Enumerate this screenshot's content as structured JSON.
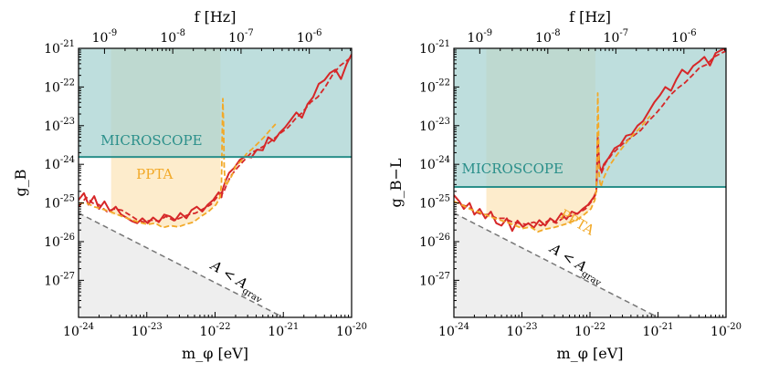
{
  "chart_data": [
    {
      "type": "line",
      "title": "",
      "xlabel": "m_φ [eV]",
      "ylabel": "g_B",
      "top_axis_label": "f [Hz]",
      "xscale": "log",
      "yscale": "log",
      "xlim": [
        1e-24,
        1e-20
      ],
      "ylim": [
        1.1e-28,
        1e-21
      ],
      "x_ticks": [
        {
          "exp": -24
        },
        {
          "exp": -23
        },
        {
          "exp": -22
        },
        {
          "exp": -21
        },
        {
          "exp": -20
        }
      ],
      "y_ticks": [
        {
          "exp": -21
        },
        {
          "exp": -22
        },
        {
          "exp": -23
        },
        {
          "exp": -24
        },
        {
          "exp": -25
        },
        {
          "exp": -26
        },
        {
          "exp": -27
        }
      ],
      "top_ticks": [
        {
          "exp": -9,
          "mass": 2.4e-24
        },
        {
          "exp": -8,
          "mass": 2.4e-23
        },
        {
          "exp": -7,
          "mass": 2.4e-22
        },
        {
          "exp": -6,
          "mass": 2.4e-21
        }
      ],
      "regions": [
        {
          "name": "MICROSCOPE",
          "label": "MICROSCOPE",
          "color": "#2a8f8a",
          "fill": "#a8d3d2",
          "level": 1.55e-24,
          "label_pos": [
            2.1e-24,
            3.2e-24
          ]
        },
        {
          "name": "PPTA",
          "label": "PPTA",
          "color": "#f2a928",
          "fill": "#fdeccc",
          "x_range": [
            3e-24,
            1.2e-22
          ],
          "label_pos": [
            1.3e-23,
            4.2e-25
          ]
        },
        {
          "name": "Agrav",
          "label_main": "A < A",
          "label_sub": "grav",
          "fill": "#eeeeee",
          "color": "#777777",
          "line": [
            [
              1e-24,
              5.5e-26
            ],
            [
              1e-21,
              1.1e-28
            ]
          ],
          "label_pos": [
            2e-22,
            8e-28
          ],
          "label_angle": 32
        }
      ],
      "series": [
        {
          "name": "solid",
          "color": "#d62728",
          "dash": "",
          "x": [
            1e-24,
            1.2e-24,
            1.4e-24,
            1.7e-24,
            2e-24,
            2.4e-24,
            2.9e-24,
            3.5e-24,
            4.2e-24,
            5e-24,
            6e-24,
            7.2e-24,
            8.6e-24,
            1.03e-23,
            1.24e-23,
            1.5e-23,
            1.8e-23,
            2.2e-23,
            2.6e-23,
            3.1e-23,
            3.8e-23,
            4.5e-23,
            5.4e-23,
            6.5e-23,
            7.8e-23,
            9.4e-23,
            1.13e-22,
            1.24e-22,
            1.3e-22,
            1.38e-22,
            1.48e-22,
            1.6e-22,
            1.9e-22,
            2.3e-22,
            2.8e-22,
            3.4e-22,
            4.1e-22,
            5e-22,
            6e-22,
            7.3e-22,
            8.8e-22,
            1.06e-21,
            1.28e-21,
            1.55e-21,
            1.87e-21,
            2.26e-21,
            2.73e-21,
            3.3e-21,
            4e-21,
            4.8e-21,
            5.8e-21,
            7e-21,
            8.5e-21,
            1e-20
          ],
          "y": [
            1.2e-25,
            1.8e-25,
            9e-26,
            1.5e-25,
            7e-26,
            1.1e-25,
            6e-26,
            8e-26,
            5e-26,
            4.2e-26,
            3.4e-26,
            3e-26,
            4e-26,
            3e-26,
            4.2e-26,
            3.2e-26,
            5e-26,
            4.5e-26,
            3.6e-26,
            5.5e-26,
            4e-26,
            6.5e-26,
            8e-26,
            6e-26,
            9e-26,
            1.2e-25,
            1.9e-25,
            1.4e-25,
            2.3e-25,
            3.2e-25,
            4.3e-25,
            6e-25,
            8e-25,
            1.3e-24,
            1.6e-24,
            1.5e-24,
            2.4e-24,
            2.3e-24,
            5e-24,
            4e-24,
            6.5e-24,
            9e-24,
            1.4e-23,
            2.2e-23,
            1.6e-23,
            3.6e-23,
            5.5e-23,
            1.2e-22,
            1.5e-22,
            2.3e-22,
            2.8e-22,
            1.6e-22,
            4e-22,
            7e-22
          ]
        },
        {
          "name": "dashed",
          "color": "#d62728",
          "dash": "6 3",
          "x": [
            1e-24,
            1.3e-24,
            1.6e-24,
            2e-24,
            2.6e-24,
            3.3e-24,
            4.3e-24,
            5.5e-24,
            7e-24,
            9e-24,
            1.15e-23,
            1.5e-23,
            1.9e-23,
            2.5e-23,
            3.2e-23,
            4.1e-23,
            5.2e-23,
            6.7e-23,
            8.6e-23,
            1.1e-22,
            1.24e-22,
            1.3e-22,
            1.38e-22,
            1.48e-22,
            1.7e-22,
            2.1e-22,
            2.7e-22,
            3.4e-22,
            4.4e-22,
            5.6e-22,
            7.2e-22,
            9.2e-22,
            1.18e-21,
            1.5e-21,
            1.9e-21,
            2.5e-21,
            3.2e-21,
            4.1e-21,
            5.2e-21,
            6.7e-21,
            8.5e-21,
            1e-20
          ],
          "y": [
            8e-26,
            1.4e-25,
            1e-25,
            9e-26,
            6e-26,
            7e-26,
            6.5e-26,
            5e-26,
            3.8e-26,
            3.2e-26,
            3.6e-26,
            3.4e-26,
            4.5e-26,
            3.5e-26,
            4.2e-26,
            5e-26,
            5.5e-26,
            7e-26,
            9e-26,
            1.5e-25,
            1.9e-25,
            1.8e-25,
            2.2e-25,
            3e-25,
            5e-25,
            8e-25,
            1.3e-24,
            2e-24,
            2.5e-24,
            3.2e-24,
            4.5e-24,
            6.5e-24,
            9e-24,
            1.5e-23,
            2.2e-23,
            4e-23,
            5.5e-23,
            1e-22,
            2e-22,
            3.5e-22,
            4.8e-22,
            6e-22
          ]
        },
        {
          "name": "ppta",
          "color": "#f2a928",
          "dash": "6 3",
          "x": [
            1e-24,
            1.3e-24,
            1.7e-24,
            2.2e-24,
            2.9e-24,
            3.7e-24,
            4.8e-24,
            6.2e-24,
            8e-24,
            1.03e-23,
            1.33e-23,
            1.72e-23,
            2.2e-23,
            2.9e-23,
            3.7e-23,
            4.8e-23,
            6.2e-23,
            8e-23,
            1.03e-22,
            1.18e-22,
            1.24e-22,
            1.27e-22,
            1.3e-22,
            1.33e-22,
            1.36e-22,
            1.4e-22,
            1.45e-22,
            1.55e-22,
            1.75e-22,
            2e-22,
            2.4e-22,
            2.9e-22,
            3.5e-22,
            4.3e-22,
            5.2e-22,
            6.3e-22,
            7.7e-22
          ],
          "y": [
            1e-25,
            1e-25,
            8e-26,
            7e-26,
            6e-26,
            5e-26,
            4.2e-26,
            3.6e-26,
            3.1e-26,
            2.8e-26,
            3e-26,
            2.3e-26,
            2.6e-26,
            2.4e-26,
            2.8e-26,
            3.2e-26,
            4.5e-26,
            6e-26,
            9e-26,
            1.4e-25,
            3e-25,
            6e-24,
            5e-23,
            1e-23,
            8e-25,
            4e-25,
            2.8e-25,
            3.5e-25,
            5e-25,
            9e-25,
            1.2e-24,
            1.9e-24,
            2.5e-24,
            3.6e-24,
            5e-24,
            7.5e-24,
            1.1e-23
          ]
        }
      ]
    },
    {
      "type": "line",
      "title": "",
      "xlabel": "m_φ [eV]",
      "ylabel": "g_B−L",
      "top_axis_label": "f [Hz]",
      "xscale": "log",
      "yscale": "log",
      "xlim": [
        1e-24,
        1e-20
      ],
      "ylim": [
        1.1e-28,
        1e-21
      ],
      "x_ticks": [
        {
          "exp": -24
        },
        {
          "exp": -23
        },
        {
          "exp": -22
        },
        {
          "exp": -21
        },
        {
          "exp": -20
        }
      ],
      "y_ticks": [
        {
          "exp": -21
        },
        {
          "exp": -22
        },
        {
          "exp": -23
        },
        {
          "exp": -24
        },
        {
          "exp": -25
        },
        {
          "exp": -26
        },
        {
          "exp": -27
        }
      ],
      "top_ticks": [
        {
          "exp": -9,
          "mass": 2.4e-24
        },
        {
          "exp": -8,
          "mass": 2.4e-23
        },
        {
          "exp": -7,
          "mass": 2.4e-22
        },
        {
          "exp": -6,
          "mass": 2.4e-21
        }
      ],
      "regions": [
        {
          "name": "MICROSCOPE",
          "label": "MICROSCOPE",
          "color": "#2a8f8a",
          "fill": "#a8d3d2",
          "level": 2.6e-25,
          "label_pos": [
            1.3e-24,
            5.8e-25
          ]
        },
        {
          "name": "PPTA",
          "label": "PPTA",
          "color": "#f2a928",
          "fill": "#fdeccc",
          "x_range": [
            3e-24,
            1.2e-22
          ],
          "label_pos": [
            6e-23,
            2.5e-26
          ],
          "label_angle": 30
        },
        {
          "name": "Agrav",
          "label_main": "A < A",
          "label_sub": "grav",
          "fill": "#eeeeee",
          "color": "#777777",
          "line": [
            [
              1e-24,
              5.5e-26
            ],
            [
              1e-21,
              1.1e-28
            ]
          ],
          "label_pos": [
            6e-23,
            2.2e-27
          ],
          "label_angle": 32
        }
      ],
      "series": [
        {
          "name": "solid",
          "color": "#d62728",
          "dash": "",
          "x": [
            1e-24,
            1.2e-24,
            1.4e-24,
            1.7e-24,
            2e-24,
            2.4e-24,
            2.9e-24,
            3.5e-24,
            4.2e-24,
            5e-24,
            6e-24,
            7.2e-24,
            8.6e-24,
            1.03e-23,
            1.24e-23,
            1.5e-23,
            1.8e-23,
            2.2e-23,
            2.6e-23,
            3.1e-23,
            3.8e-23,
            4.5e-23,
            5.4e-23,
            6.5e-23,
            7.8e-23,
            9.4e-23,
            1.13e-22,
            1.24e-22,
            1.3e-22,
            1.38e-22,
            1.48e-22,
            1.6e-22,
            1.9e-22,
            2.3e-22,
            2.8e-22,
            3.4e-22,
            4.1e-22,
            5e-22,
            6e-22,
            7.3e-22,
            8.8e-22,
            1.06e-21,
            1.28e-21,
            1.55e-21,
            1.87e-21,
            2.26e-21,
            2.73e-21,
            3.3e-21,
            4e-21,
            4.8e-21,
            5.8e-21,
            7e-21,
            8.5e-21,
            1e-20
          ],
          "y": [
            1.6e-25,
            1.1e-25,
            7e-26,
            1e-25,
            5e-26,
            7e-26,
            4e-26,
            6e-26,
            3e-26,
            2.6e-26,
            4e-26,
            1.9e-26,
            3.5e-26,
            2.4e-26,
            3e-26,
            2.3e-26,
            3.6e-26,
            2.6e-26,
            4e-26,
            3.2e-26,
            5.4e-26,
            3.8e-26,
            6e-26,
            5.2e-26,
            7e-26,
            9e-26,
            1.4e-25,
            2e-25,
            5e-24,
            9e-25,
            6.5e-25,
            1e-24,
            1.5e-24,
            2.6e-24,
            3.2e-24,
            5.5e-24,
            6e-24,
            1e-23,
            1.3e-23,
            2.3e-23,
            4e-23,
            6e-23,
            1e-22,
            8e-23,
            1.6e-22,
            2.8e-22,
            2.2e-22,
            3.5e-22,
            4.5e-22,
            6e-22,
            3.6e-22,
            7.5e-22,
            9e-22,
            1e-21
          ]
        },
        {
          "name": "dashed",
          "color": "#d62728",
          "dash": "6 3",
          "x": [
            1e-24,
            1.3e-24,
            1.6e-24,
            2e-24,
            2.6e-24,
            3.3e-24,
            4.3e-24,
            5.5e-24,
            7e-24,
            9e-24,
            1.15e-23,
            1.5e-23,
            1.9e-23,
            2.5e-23,
            3.2e-23,
            4.1e-23,
            5.2e-23,
            6.7e-23,
            8.6e-23,
            1.1e-22,
            1.24e-22,
            1.3e-22,
            1.38e-22,
            1.48e-22,
            1.7e-22,
            2.1e-22,
            2.7e-22,
            3.4e-22,
            4.4e-22,
            5.6e-22,
            7.2e-22,
            9.2e-22,
            1.18e-21,
            1.5e-21,
            1.9e-21,
            2.5e-21,
            3.2e-21,
            4.1e-21,
            5.2e-21,
            6.7e-21,
            8.5e-21,
            1e-20
          ],
          "y": [
            1.1e-25,
            9e-26,
            8e-26,
            6e-26,
            5e-26,
            5e-26,
            4e-26,
            4e-26,
            3.3e-26,
            3e-26,
            2.8e-26,
            3.2e-26,
            2.6e-26,
            3.6e-26,
            3e-26,
            4.2e-26,
            4.6e-26,
            5.5e-26,
            7e-26,
            1.2e-25,
            1.8e-25,
            2.4e-24,
            9e-25,
            6e-25,
            1.1e-24,
            1.8e-24,
            2.8e-24,
            4e-24,
            5.5e-24,
            7.6e-24,
            1.3e-23,
            2e-23,
            3.4e-23,
            6e-23,
            9e-23,
            1.3e-22,
            2e-22,
            3.2e-22,
            3.8e-22,
            6e-22,
            7.5e-22,
            8.5e-22
          ]
        },
        {
          "name": "ppta",
          "color": "#f2a928",
          "dash": "6 3",
          "x": [
            1e-24,
            1.3e-24,
            1.7e-24,
            2.2e-24,
            2.9e-24,
            3.7e-24,
            4.8e-24,
            6.2e-24,
            8e-24,
            1.03e-23,
            1.33e-23,
            1.72e-23,
            2.2e-23,
            2.9e-23,
            3.7e-23,
            4.8e-23,
            6.2e-23,
            8e-23,
            1.03e-22,
            1.18e-22,
            1.24e-22,
            1.27e-22,
            1.3e-22,
            1.33e-22,
            1.36e-22,
            1.4e-22,
            1.45e-22,
            1.55e-22,
            1.75e-22,
            2e-22,
            2.4e-22,
            2.9e-22,
            3.5e-22,
            4.3e-22,
            5.2e-22,
            6.3e-22,
            7.7e-22
          ],
          "y": [
            1.1e-25,
            9e-26,
            7e-26,
            6e-26,
            5e-26,
            4.2e-26,
            3.6e-26,
            3.1e-26,
            2.6e-26,
            2.2e-26,
            2.4e-26,
            1.8e-26,
            2.1e-26,
            2.3e-26,
            2.6e-26,
            3e-26,
            3.6e-26,
            4.8e-26,
            7e-26,
            1.2e-25,
            2.2e-25,
            1e-24,
            7e-23,
            1.5e-23,
            6e-25,
            3.5e-25,
            2.6e-25,
            4e-25,
            6.5e-25,
            1e-24,
            1.6e-24,
            2.5e-24,
            3.8e-24,
            5.8e-24,
            8e-24,
            1.2e-23,
            1.8e-23
          ]
        }
      ]
    }
  ]
}
